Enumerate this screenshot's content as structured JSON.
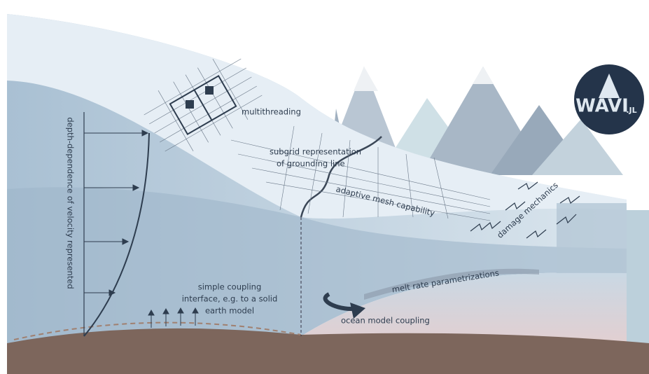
{
  "labels": {
    "multithreading": "multithreading",
    "subgrid": [
      "subgrid representation",
      "of grounding line"
    ],
    "adaptive_mesh": "adaptive mesh capability",
    "damage": "damage mechanics",
    "velocity": "depth-dependence of velocity represented",
    "coupling": [
      "simple coupling",
      "interface, e.g. to a solid",
      "earth model"
    ],
    "melt": "melt rate parametrizations",
    "ocean": "ocean model coupling"
  },
  "logo": {
    "name": "WAVI",
    "suffix": ".JL"
  }
}
